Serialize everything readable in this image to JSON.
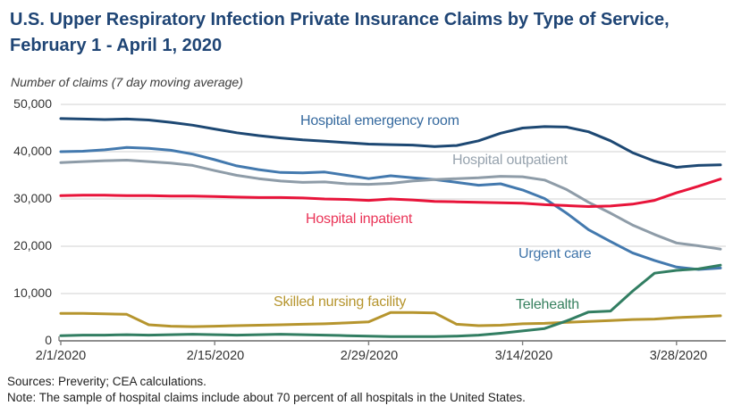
{
  "header": {
    "title": "U.S. Upper Respiratory Infection Private Insurance Claims by Type of Service, February 1 - April 1, 2020",
    "subtitle": "Number of claims (7 day moving average)"
  },
  "footer": {
    "sources": "Sources: Preverity; CEA calculations.",
    "note": "Note: The sample of hospital claims include about 70 percent of all hospitals in the United States."
  },
  "colors": {
    "title_text": "#1F4575",
    "axis_text": "#333333",
    "gridline": "#D9D9D9",
    "axis_line": "#7F7F7F",
    "background": "#FFFFFF"
  },
  "chart_data": {
    "type": "line",
    "title": "U.S. Upper Respiratory Infection Private Insurance Claims by Type of Service, February 1 - April 1, 2020",
    "ylabel": "Number of claims (7 day moving average)",
    "xlabel": "",
    "grid": "horizontal",
    "legend_position": "inline-labels",
    "ylim": [
      0,
      50000
    ],
    "xlim_days": [
      0,
      60
    ],
    "y_ticks": [
      0,
      10000,
      20000,
      30000,
      40000,
      50000
    ],
    "y_tick_labels": [
      "0",
      "10,000",
      "20,000",
      "30,000",
      "40,000",
      "50,000"
    ],
    "x_tick_days": [
      0,
      14,
      28,
      42,
      56
    ],
    "x_tick_labels": [
      "2/1/2020",
      "2/15/2020",
      "2/29/2020",
      "3/14/2020",
      "3/28/2020"
    ],
    "days": [
      0,
      2,
      4,
      6,
      8,
      10,
      12,
      14,
      16,
      18,
      20,
      22,
      24,
      26,
      28,
      30,
      32,
      34,
      36,
      38,
      40,
      42,
      44,
      46,
      48,
      50,
      52,
      54,
      56,
      58,
      60
    ],
    "series": [
      {
        "name": "Hospital emergency room",
        "color": "#1D4873",
        "label_color": "#35699E",
        "values": [
          47000,
          46900,
          46800,
          46900,
          46700,
          46200,
          45600,
          44800,
          44000,
          43400,
          42900,
          42500,
          42200,
          41900,
          41600,
          41500,
          41400,
          41100,
          41300,
          42300,
          43900,
          45000,
          45300,
          45200,
          44200,
          42300,
          39800,
          38000,
          36700,
          37100,
          37200
        ]
      },
      {
        "name": "Urgent care",
        "color": "#4379AE",
        "label_color": "#3F74A9",
        "values": [
          40000,
          40100,
          40400,
          40900,
          40700,
          40300,
          39500,
          38300,
          37000,
          36200,
          35600,
          35500,
          35700,
          35000,
          34300,
          34900,
          34500,
          34100,
          33500,
          32900,
          33200,
          31900,
          30100,
          27000,
          23500,
          21000,
          18600,
          17000,
          15600,
          15100,
          15400
        ]
      },
      {
        "name": "Hospital outpatient",
        "color": "#8E9CA8",
        "label_color": "#97A3AE",
        "values": [
          37700,
          37900,
          38100,
          38200,
          37900,
          37600,
          37100,
          36000,
          35000,
          34300,
          33800,
          33500,
          33600,
          33200,
          33100,
          33300,
          33800,
          34100,
          34300,
          34500,
          34800,
          34700,
          34000,
          32000,
          29300,
          27000,
          24500,
          22500,
          20700,
          20100,
          19400
        ]
      },
      {
        "name": "Hospital inpatient",
        "color": "#E8143A",
        "label_color": "#EA3558",
        "values": [
          30700,
          30800,
          30800,
          30700,
          30700,
          30600,
          30600,
          30500,
          30400,
          30300,
          30300,
          30200,
          30000,
          29900,
          29700,
          30000,
          29800,
          29500,
          29400,
          29300,
          29200,
          29100,
          28800,
          28600,
          28400,
          28500,
          28900,
          29700,
          31300,
          32700,
          34200
        ]
      },
      {
        "name": "Skilled nursing facility",
        "color": "#B6952E",
        "label_color": "#B6952E",
        "values": [
          5800,
          5800,
          5700,
          5600,
          3400,
          3100,
          3000,
          3100,
          3200,
          3300,
          3400,
          3500,
          3600,
          3800,
          4000,
          6000,
          6000,
          5900,
          3500,
          3200,
          3300,
          3600,
          3700,
          3900,
          4100,
          4300,
          4500,
          4600,
          4900,
          5100,
          5300
        ]
      },
      {
        "name": "Telehealth",
        "color": "#327E62",
        "label_color": "#37815F",
        "values": [
          1100,
          1200,
          1200,
          1300,
          1200,
          1300,
          1400,
          1300,
          1200,
          1300,
          1400,
          1300,
          1200,
          1100,
          1000,
          900,
          900,
          900,
          1000,
          1200,
          1600,
          2100,
          2600,
          4200,
          6100,
          6300,
          10500,
          14300,
          14900,
          15200,
          16000
        ]
      }
    ]
  }
}
